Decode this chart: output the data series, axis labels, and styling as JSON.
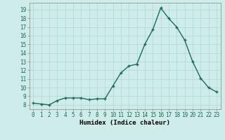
{
  "x": [
    0,
    1,
    2,
    3,
    4,
    5,
    6,
    7,
    8,
    9,
    10,
    11,
    12,
    13,
    14,
    15,
    16,
    17,
    18,
    19,
    20,
    21,
    22,
    23
  ],
  "y": [
    8.2,
    8.1,
    8.0,
    8.5,
    8.8,
    8.8,
    8.8,
    8.6,
    8.7,
    8.7,
    10.2,
    11.7,
    12.5,
    12.7,
    15.0,
    16.7,
    19.2,
    18.0,
    17.0,
    15.5,
    13.0,
    11.1,
    10.0,
    9.5
  ],
  "line_color": "#1a6b5a",
  "marker": "+",
  "bg_color": "#ceecea",
  "grid_color_major": "#b8d8d5",
  "grid_color_minor": "#d4e8e6",
  "xlabel": "Humidex (Indice chaleur)",
  "xlim": [
    -0.5,
    23.5
  ],
  "ylim": [
    7.5,
    19.8
  ],
  "yticks": [
    8,
    9,
    10,
    11,
    12,
    13,
    14,
    15,
    16,
    17,
    18,
    19
  ],
  "xticks": [
    0,
    1,
    2,
    3,
    4,
    5,
    6,
    7,
    8,
    9,
    10,
    11,
    12,
    13,
    14,
    15,
    16,
    17,
    18,
    19,
    20,
    21,
    22,
    23
  ],
  "xtick_labels": [
    "0",
    "1",
    "2",
    "3",
    "4",
    "5",
    "6",
    "7",
    "8",
    "9",
    "10",
    "11",
    "12",
    "13",
    "14",
    "15",
    "16",
    "17",
    "18",
    "19",
    "20",
    "21",
    "22",
    "23"
  ],
  "marker_size": 3.5,
  "line_width": 1.0,
  "tick_fontsize": 5.5,
  "xlabel_fontsize": 6.5
}
